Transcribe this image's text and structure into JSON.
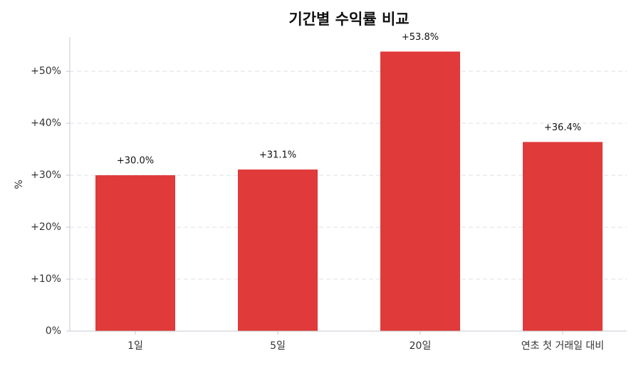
{
  "chart_data": {
    "type": "bar",
    "title": "기간별 수익률 비교",
    "y_label": "%",
    "categories": [
      "1일",
      "5일",
      "20일",
      "연초 첫 거래일 대비"
    ],
    "values": [
      30.0,
      31.1,
      53.8,
      36.4
    ],
    "value_labels": [
      "+30.0%",
      "+31.1%",
      "+53.8%",
      "+36.4%"
    ],
    "color": "#e03a3a",
    "ylim": [
      0,
      56.6
    ],
    "yticks": [
      {
        "value": 0,
        "label": "0%"
      },
      {
        "value": 10,
        "label": "+10%"
      },
      {
        "value": 20,
        "label": "+20%"
      },
      {
        "value": 30,
        "label": "+30%"
      },
      {
        "value": 40,
        "label": "+40%"
      },
      {
        "value": 50,
        "label": "+50%"
      }
    ],
    "grid": true
  }
}
